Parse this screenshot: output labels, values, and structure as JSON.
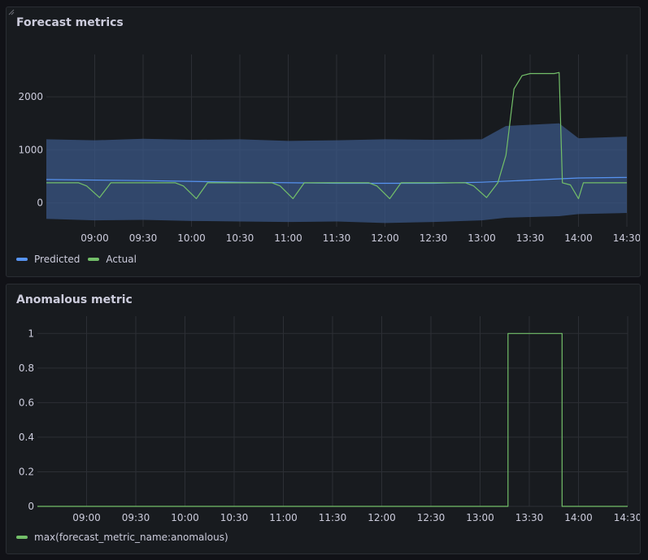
{
  "colors": {
    "predicted": "#5794f2",
    "actual": "#73bf69",
    "band": "#3a5785",
    "grid": "#2c2f35"
  },
  "panels": [
    {
      "title": "Forecast metrics",
      "legend": [
        {
          "name": "Predicted",
          "color": "#5794f2"
        },
        {
          "name": "Actual",
          "color": "#73bf69"
        }
      ]
    },
    {
      "title": "Anomalous metric",
      "legend": [
        {
          "name": "max(forecast_metric_name:anomalous)",
          "color": "#73bf69"
        }
      ]
    }
  ],
  "chart_data": [
    {
      "type": "line",
      "title": "Forecast metrics",
      "x_ticks": [
        "09:00",
        "09:30",
        "10:00",
        "10:30",
        "11:00",
        "11:30",
        "12:00",
        "12:30",
        "13:00",
        "13:30",
        "14:00",
        "14:30"
      ],
      "y_ticks": [
        0,
        1000,
        2000
      ],
      "xlim": [
        "08:30",
        "14:30"
      ],
      "ylim": [
        -450,
        2800
      ],
      "grid": true,
      "legend_position": "bottom-left",
      "series": [
        {
          "name": "Predicted",
          "x": [
            "08:30",
            "09:30",
            "10:30",
            "11:30",
            "12:30",
            "13:00",
            "13:30",
            "14:00",
            "14:30"
          ],
          "values": [
            440,
            420,
            390,
            370,
            370,
            390,
            430,
            470,
            480
          ]
        },
        {
          "name": "Actual",
          "x": [
            "08:30",
            "08:50",
            "08:55",
            "09:03",
            "09:10",
            "09:30",
            "09:50",
            "09:55",
            "10:03",
            "10:10",
            "10:30",
            "10:50",
            "10:55",
            "11:03",
            "11:10",
            "11:30",
            "11:50",
            "11:55",
            "12:03",
            "12:10",
            "12:30",
            "12:50",
            "12:55",
            "13:03",
            "13:10",
            "13:15",
            "13:20",
            "13:25",
            "13:30",
            "13:40",
            "13:45",
            "13:48",
            "13:50",
            "13:55",
            "14:00",
            "14:03",
            "14:10",
            "14:30"
          ],
          "values": [
            380,
            380,
            320,
            100,
            380,
            380,
            380,
            320,
            80,
            380,
            380,
            380,
            320,
            80,
            380,
            380,
            380,
            320,
            80,
            380,
            380,
            380,
            320,
            100,
            380,
            900,
            2150,
            2400,
            2440,
            2440,
            2440,
            2460,
            380,
            340,
            80,
            380,
            380,
            380
          ]
        },
        {
          "name": "band",
          "x": [
            "08:30",
            "09:00",
            "09:30",
            "10:00",
            "10:30",
            "11:00",
            "11:30",
            "12:00",
            "12:30",
            "13:00",
            "13:15",
            "13:48",
            "14:00",
            "14:30"
          ],
          "upper": [
            1200,
            1180,
            1210,
            1190,
            1200,
            1170,
            1180,
            1200,
            1190,
            1200,
            1450,
            1500,
            1220,
            1250
          ],
          "lower": [
            -300,
            -330,
            -320,
            -340,
            -350,
            -360,
            -350,
            -380,
            -360,
            -330,
            -280,
            -250,
            -210,
            -190
          ]
        }
      ]
    },
    {
      "type": "line",
      "title": "Anomalous metric",
      "x_ticks": [
        "09:00",
        "09:30",
        "10:00",
        "10:30",
        "11:00",
        "11:30",
        "12:00",
        "12:30",
        "13:00",
        "13:30",
        "14:00",
        "14:30"
      ],
      "y_ticks": [
        0,
        0.2,
        0.4,
        0.6,
        0.8,
        1
      ],
      "xlim": [
        "08:30",
        "14:30"
      ],
      "ylim": [
        0,
        1.1
      ],
      "grid": true,
      "legend_position": "bottom-left",
      "series": [
        {
          "name": "max(forecast_metric_name:anomalous)",
          "x": [
            "08:30",
            "13:17",
            "13:17",
            "13:50",
            "13:50",
            "14:30"
          ],
          "values": [
            0,
            0,
            1,
            1,
            0,
            0
          ]
        }
      ]
    }
  ]
}
